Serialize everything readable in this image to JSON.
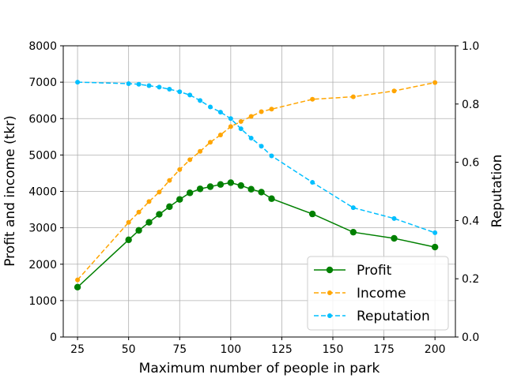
{
  "chart_data": {
    "type": "line",
    "xlabel": "Maximum number of people in park",
    "ylabel_left": "Profit and income (tkr)",
    "ylabel_right": "Reputation",
    "xlim": [
      18,
      210
    ],
    "ylim_left": [
      0,
      8000
    ],
    "ylim_right": [
      0.0,
      1.0
    ],
    "x_ticks": [
      25,
      50,
      75,
      100,
      125,
      150,
      175,
      200
    ],
    "y_ticks_left": [
      0,
      1000,
      2000,
      3000,
      4000,
      5000,
      6000,
      7000,
      8000
    ],
    "y_ticks_right": [
      "0.0",
      "0.2",
      "0.4",
      "0.6",
      "0.8",
      "1.0"
    ],
    "grid": true,
    "legend_position": "lower-right",
    "series": [
      {
        "name": "Profit",
        "axis": "left",
        "color": "#008000",
        "style": "solid",
        "marker_size": 4.2,
        "x": [
          25,
          50,
          55,
          60,
          65,
          70,
          75,
          80,
          85,
          90,
          95,
          100,
          105,
          110,
          115,
          120,
          140,
          160,
          180,
          200
        ],
        "y": [
          1370,
          2670,
          2930,
          3150,
          3370,
          3580,
          3780,
          3960,
          4070,
          4130,
          4190,
          4240,
          4160,
          4060,
          3980,
          3800,
          3380,
          2880,
          2710,
          2470
        ]
      },
      {
        "name": "Income",
        "axis": "left",
        "color": "#FFA500",
        "style": "dashed",
        "marker_size": 3,
        "x": [
          25,
          50,
          55,
          60,
          65,
          70,
          75,
          80,
          85,
          90,
          95,
          100,
          105,
          110,
          115,
          120,
          140,
          160,
          180,
          200
        ],
        "y": [
          1570,
          3150,
          3430,
          3720,
          3980,
          4300,
          4600,
          4870,
          5100,
          5350,
          5550,
          5780,
          5920,
          6060,
          6190,
          6260,
          6530,
          6600,
          6760,
          6990
        ]
      },
      {
        "name": "Reputation",
        "axis": "right",
        "color": "#00BFFF",
        "style": "dashed",
        "marker_size": 3,
        "x": [
          25,
          50,
          55,
          60,
          65,
          70,
          75,
          80,
          85,
          90,
          95,
          100,
          105,
          110,
          115,
          120,
          140,
          160,
          180,
          200
        ],
        "y": [
          0.875,
          0.87,
          0.868,
          0.863,
          0.858,
          0.851,
          0.842,
          0.831,
          0.812,
          0.79,
          0.772,
          0.75,
          0.715,
          0.683,
          0.655,
          0.622,
          0.531,
          0.444,
          0.407,
          0.358
        ]
      }
    ]
  }
}
